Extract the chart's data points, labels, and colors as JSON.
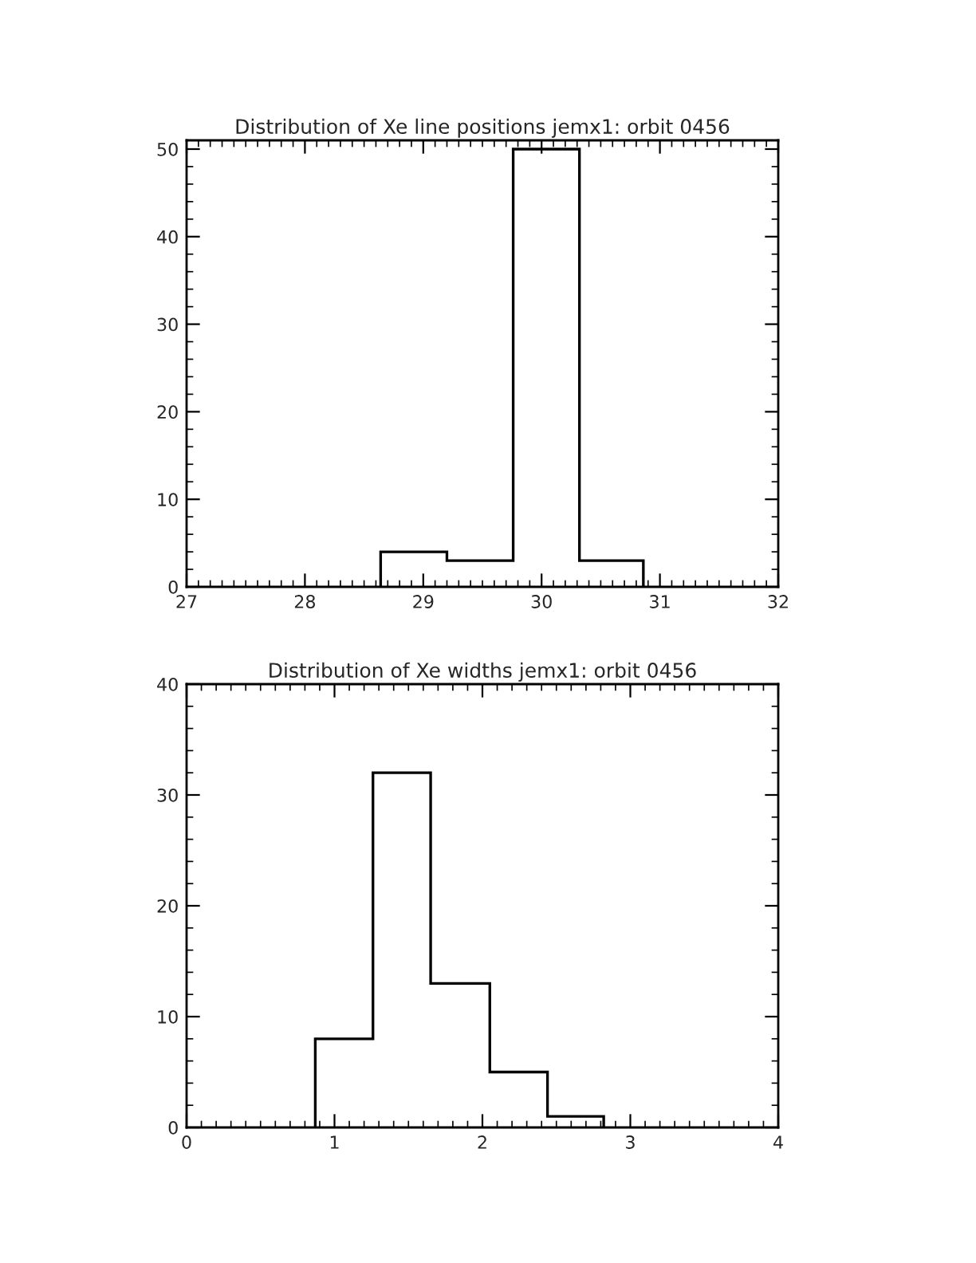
{
  "chart_data": [
    {
      "type": "histogram",
      "title": "Distribution of Xe line positions jemx1: orbit 0456",
      "bins": [
        28.64,
        29.2,
        29.76,
        30.32,
        30.86
      ],
      "values": [
        4,
        3,
        50,
        3
      ],
      "color": "#000000",
      "xlim": [
        27,
        32
      ],
      "xticks": [
        27,
        28,
        29,
        30,
        31,
        32
      ],
      "ylim": [
        0,
        51
      ],
      "yticks": [
        0,
        10,
        20,
        30,
        40,
        50
      ],
      "grid": false
    },
    {
      "type": "histogram",
      "title": "Distribution of Xe widths jemx1: orbit 0456",
      "bins": [
        0.87,
        1.26,
        1.65,
        2.05,
        2.44,
        2.82
      ],
      "values": [
        8,
        32,
        13,
        5,
        1
      ],
      "color": "#000000",
      "xlim": [
        0,
        4
      ],
      "xticks": [
        0,
        1,
        2,
        3,
        4
      ],
      "ylim": [
        0,
        40
      ],
      "yticks": [
        0,
        10,
        20,
        30,
        40
      ],
      "grid": false
    }
  ]
}
